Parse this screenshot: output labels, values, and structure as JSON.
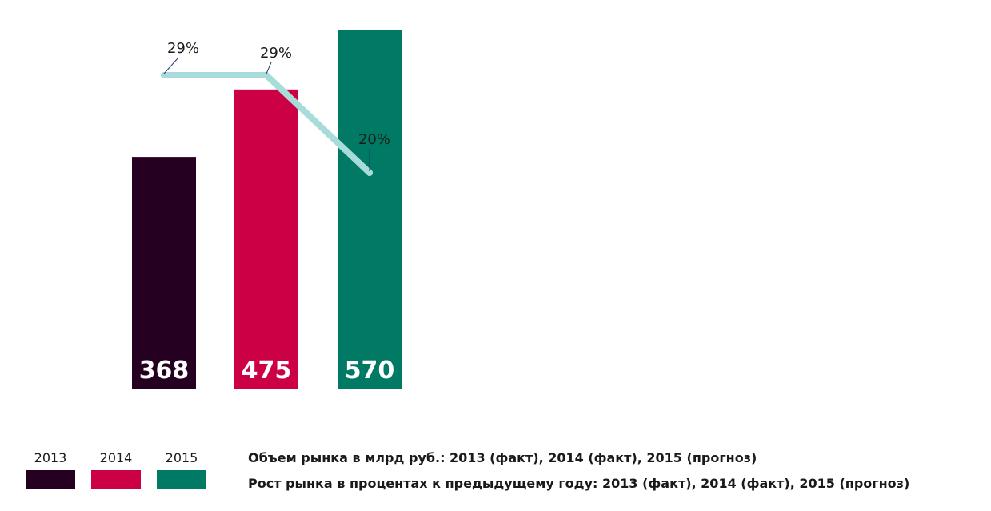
{
  "chart_data": {
    "type": "bar",
    "categories": [
      "2013",
      "2014",
      "2015"
    ],
    "series": [
      {
        "name": "Объем рынка в млрд руб.: 2013 (факт), 2014 (факт), 2015 (прогноз)",
        "type": "bar",
        "values": [
          368,
          475,
          570
        ],
        "value_labels": [
          "368",
          "475",
          "570"
        ],
        "colors": [
          "#260021",
          "#cc0044",
          "#007a64"
        ]
      },
      {
        "name": "Рост рынка в процентах к предыдущему году: 2013 (факт), 2014 (факт), 2015 (прогноз)",
        "type": "line",
        "values": [
          29,
          29,
          20
        ],
        "value_labels": [
          "29%",
          "29%",
          "20%"
        ],
        "color": "#a8dcda"
      }
    ],
    "legend": {
      "position": "bottom",
      "items": [
        {
          "label": "2013",
          "color": "#260021"
        },
        {
          "label": "2014",
          "color": "#cc0044"
        },
        {
          "label": "2015",
          "color": "#007a64"
        }
      ]
    },
    "notes": [
      "Объем рынка в млрд руб.: 2013 (факт), 2014 (факт), 2015 (прогноз)",
      "Рост рынка в процентах к предыдущему году: 2013 (факт), 2014 (факт), 2015 (прогноз)"
    ],
    "ylim": [
      0,
      570
    ],
    "line_ylim": [
      20,
      29
    ],
    "grid": false,
    "title": "",
    "xlabel": "",
    "ylabel": ""
  }
}
